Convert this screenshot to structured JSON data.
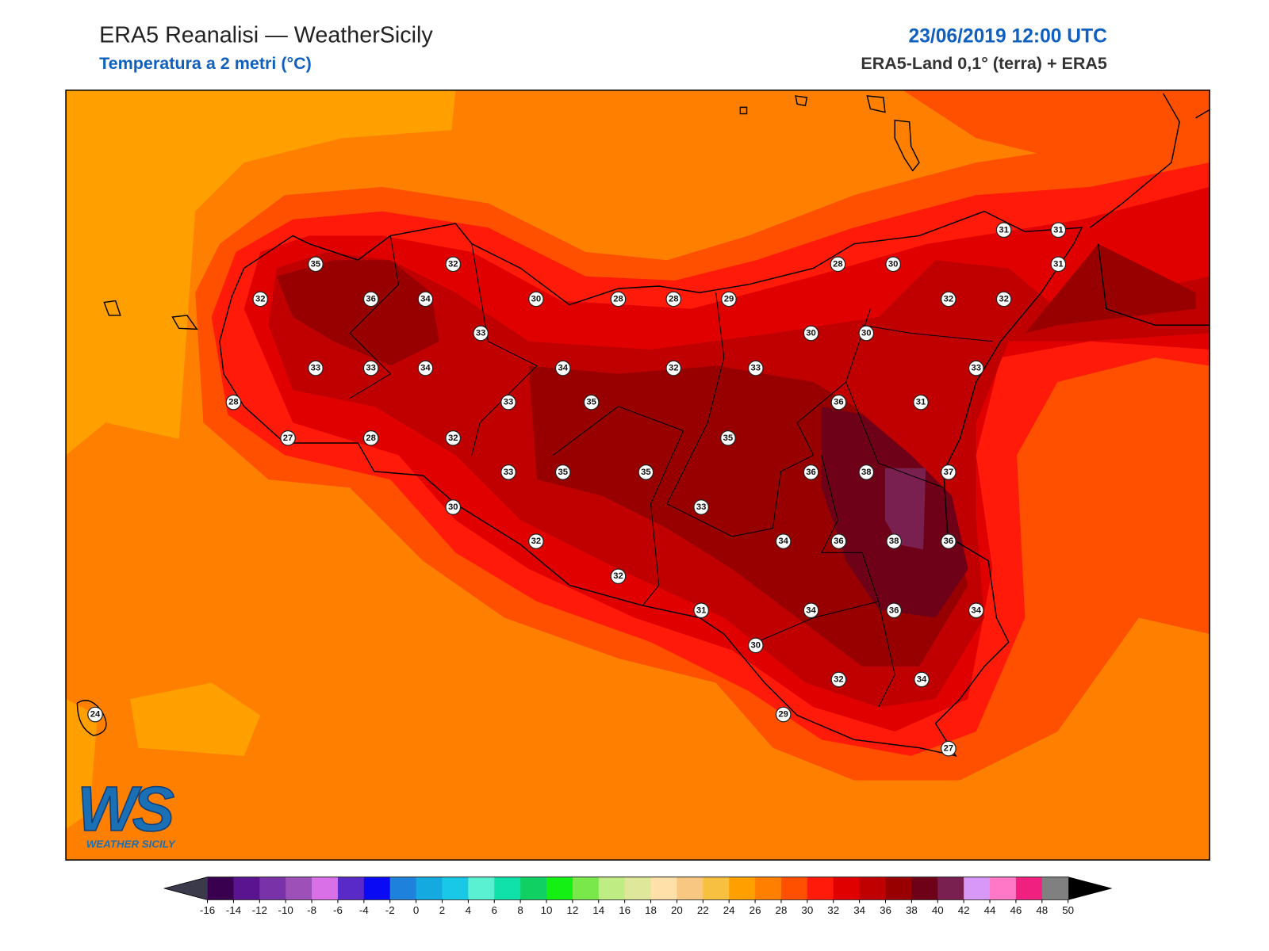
{
  "title": "ERA5 Reanalisi — WeatherSicily",
  "subtitle": "Temperatura a 2 metri (°C)",
  "date": "23/06/2019 12:00 UTC",
  "source": "ERA5-Land 0,1° (terra) + ERA5",
  "logo": {
    "main": "WS",
    "sub": "WEATHER SICILY"
  },
  "stations": [
    31,
    31,
    35,
    32,
    28,
    30,
    31,
    32,
    36,
    34,
    30,
    28,
    28,
    29,
    32,
    32,
    33,
    30,
    30,
    33,
    33,
    34,
    34,
    32,
    33,
    33,
    28,
    33,
    35,
    36,
    31,
    27,
    28,
    32,
    35,
    33,
    35,
    35,
    36,
    38,
    37,
    30,
    33,
    32,
    34,
    36,
    38,
    36,
    32,
    31,
    34,
    36,
    34,
    30,
    32,
    34,
    24,
    29,
    27
  ],
  "colorbar": {
    "ticks": [
      -16,
      -14,
      -12,
      -10,
      -8,
      -6,
      -4,
      -2,
      0,
      2,
      4,
      6,
      8,
      10,
      12,
      14,
      16,
      18,
      20,
      22,
      24,
      26,
      28,
      30,
      32,
      34,
      36,
      38,
      40,
      42,
      44,
      46,
      48,
      50
    ],
    "colors": [
      "#3a0050",
      "#5a1490",
      "#7a32a8",
      "#9c50b8",
      "#da70e8",
      "#5a2ac8",
      "#0a0af5",
      "#1e82dc",
      "#14aae0",
      "#18c8e6",
      "#5af0d2",
      "#10e0aa",
      "#10d064",
      "#14f014",
      "#78e84a",
      "#c0ec84",
      "#dfe89a",
      "#ffe0a8",
      "#f8c882",
      "#f8c040",
      "#ffa000",
      "#ff8000",
      "#ff5000",
      "#ff1a0a",
      "#e00000",
      "#c00000",
      "#980000",
      "#6e0018",
      "#7a2050",
      "#d898f8",
      "#ff78c8",
      "#f02080",
      "#808080",
      "#383838"
    ],
    "under_color": "#3a3a4a",
    "over_color": "#000000"
  }
}
